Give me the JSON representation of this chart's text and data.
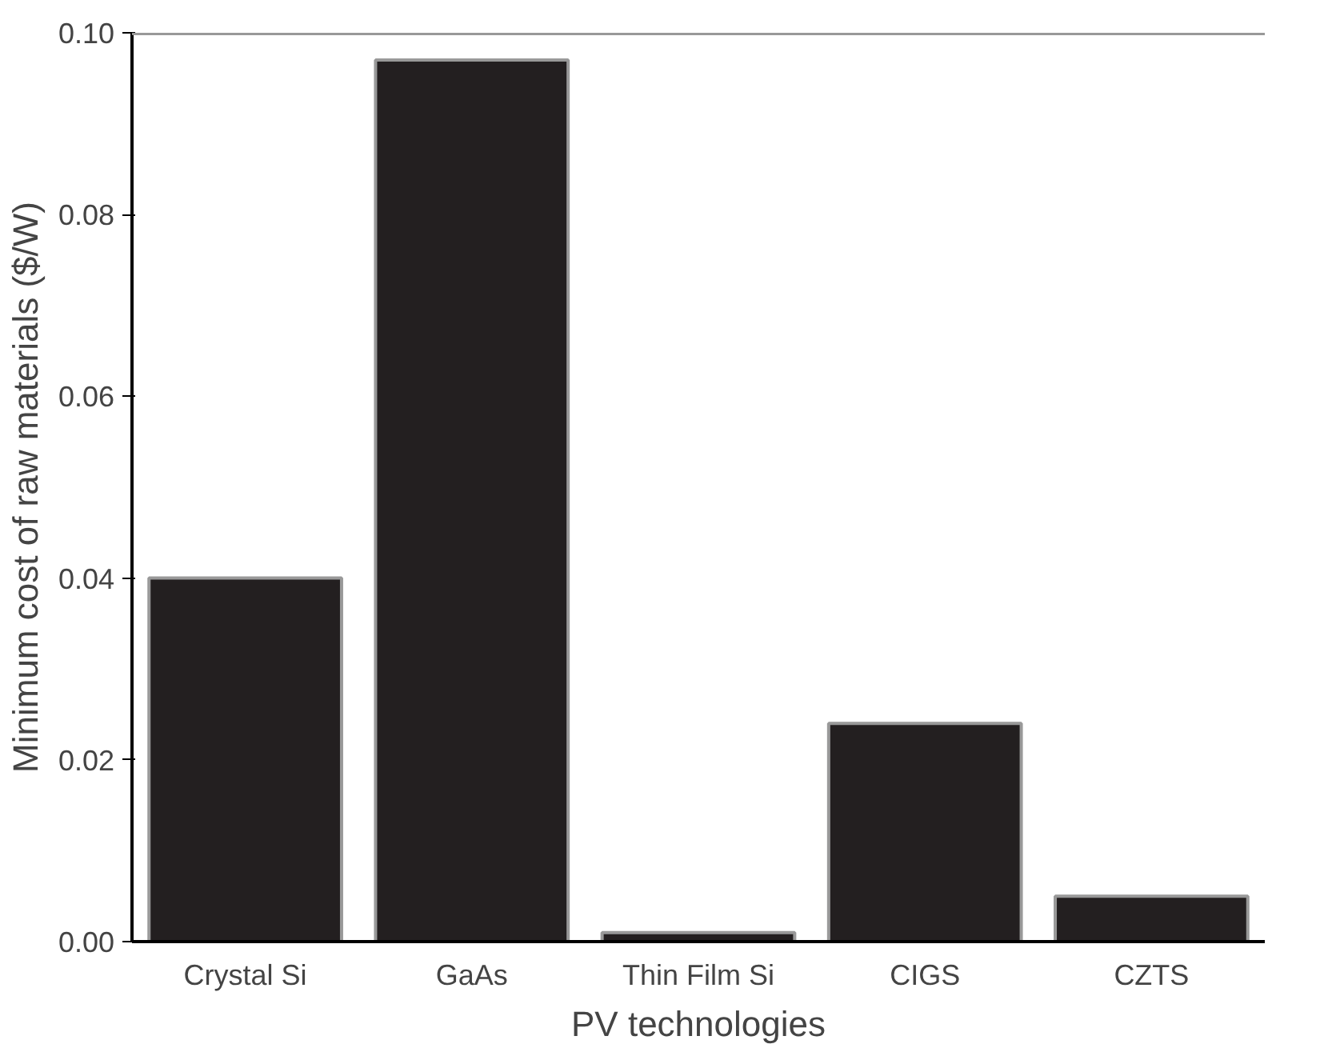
{
  "chart_data": {
    "type": "bar",
    "xlabel": "PV technologies",
    "ylabel": "Minimum cost of raw materials ($/W)",
    "categories": [
      "Crystal Si",
      "GaAs",
      "Thin Film Si",
      "CIGS",
      "CZTS"
    ],
    "values": [
      0.04,
      0.097,
      0.001,
      0.024,
      0.005
    ],
    "color": "#231f20",
    "ylim": [
      0,
      0.1
    ],
    "yticks": [
      {
        "value": 0,
        "label": "0.00"
      },
      0.02,
      0.04,
      0.06,
      0.08,
      {
        "value": 0.1,
        "label": "0.10"
      }
    ],
    "grid": false
  }
}
